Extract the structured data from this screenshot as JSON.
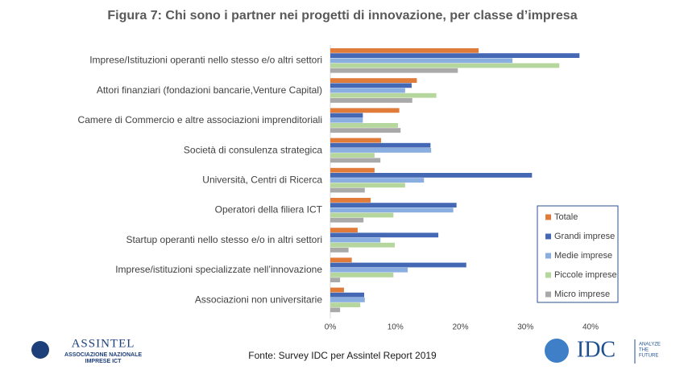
{
  "chart_data": {
    "type": "bar",
    "orientation": "horizontal",
    "title": "Figura 7: Chi sono i partner nei progetti di innovazione, per classe d’impresa",
    "categories": [
      "Imprese/Istituzioni operanti nello stesso e/o altri settori",
      "Attori finanziari (fondazioni bancarie,Venture Capital)",
      "Camere di Commercio e altre associazioni imprenditoriali",
      "Società di consulenza strategica",
      "Università, Centri di Ricerca",
      "Operatori della filiera ICT",
      "Startup operanti nello stesso e/o in altri settori",
      "Imprese/istituzioni specializzate nell’innovazione",
      "Associazioni non universitarie"
    ],
    "series": [
      {
        "name": "Totale",
        "color": "#e07b39",
        "values": [
          22.8,
          13.3,
          10.6,
          7.8,
          6.8,
          6.2,
          4.2,
          3.3,
          2.1
        ]
      },
      {
        "name": "Grandi imprese",
        "color": "#4568b5",
        "values": [
          38.3,
          12.5,
          5.0,
          15.4,
          31.0,
          19.4,
          16.6,
          20.9,
          5.2
        ]
      },
      {
        "name": "Medie imprese",
        "color": "#8aaee0",
        "values": [
          28.0,
          11.5,
          5.0,
          15.5,
          14.4,
          18.9,
          7.7,
          11.9,
          5.3
        ]
      },
      {
        "name": "Piccole imprese",
        "color": "#b5d69c",
        "values": [
          35.2,
          16.3,
          10.4,
          6.8,
          11.5,
          9.7,
          9.9,
          9.7,
          4.6
        ]
      },
      {
        "name": "Micro imprese",
        "color": "#a9a9a9",
        "values": [
          19.6,
          12.6,
          10.8,
          7.7,
          5.3,
          5.1,
          2.8,
          1.5,
          1.5
        ]
      }
    ],
    "xlim": [
      0,
      40
    ],
    "xticks": [
      {
        "value": 0,
        "label": "0%"
      },
      {
        "value": 10,
        "label": "10%"
      },
      {
        "value": 20,
        "label": "20%"
      },
      {
        "value": 30,
        "label": "30%"
      },
      {
        "value": 40,
        "label": "40%"
      }
    ],
    "grid": false,
    "legend": "right",
    "source": "Fonte: Survey IDC per Assintel Report 2019"
  },
  "logos": {
    "assintel": "ASSINTEL",
    "assintel_sub1": "ASSOCIAZIONE NAZIONALE",
    "assintel_sub2": "IMPRESE ICT",
    "idc": "IDC",
    "idc_tag1": "ANALYZE",
    "idc_tag2": "THE",
    "idc_tag3": "FUTURE"
  }
}
